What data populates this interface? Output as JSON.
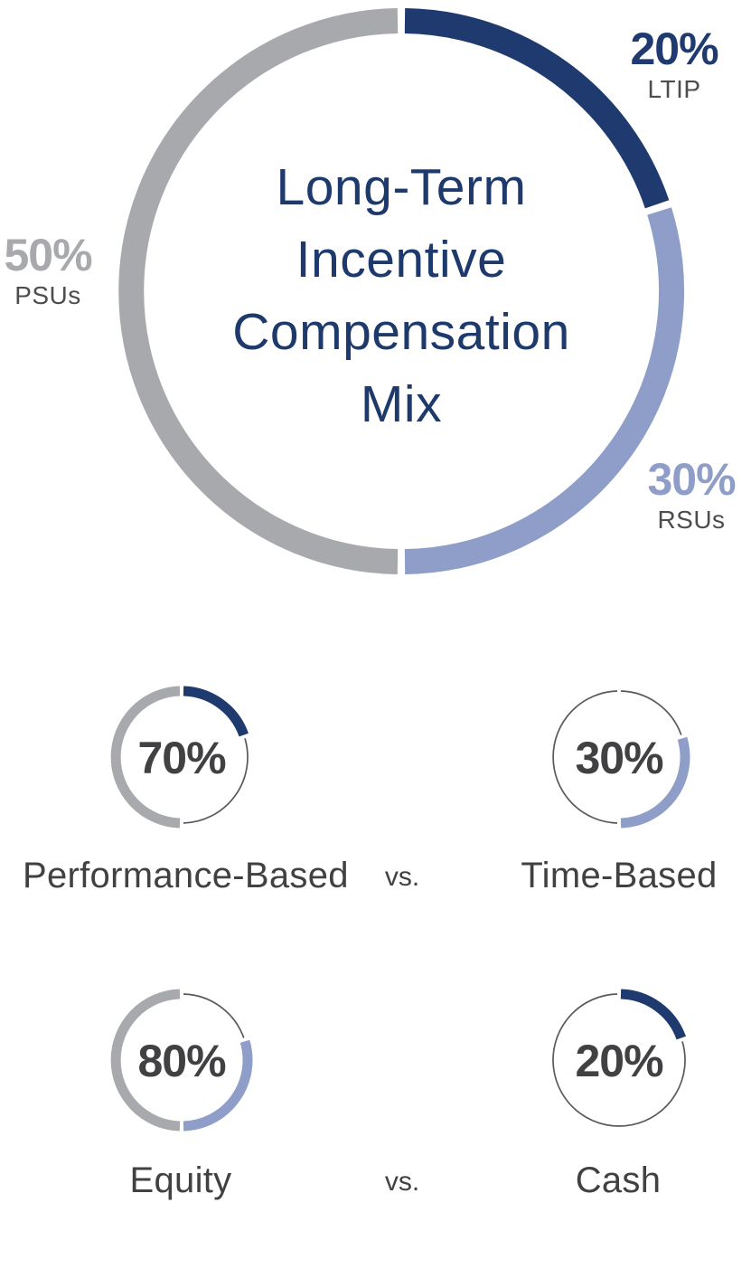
{
  "colors": {
    "navy": "#1F3A6E",
    "periwinkle": "#8E9EC8",
    "gray": "#A7A9AC",
    "hairline": "#58595B",
    "charcoal": "#414042",
    "sublabel": "#4D4D4F",
    "title_navy": "#1E3A6D"
  },
  "vs_labels": [
    "vs.",
    "vs."
  ],
  "chart_data": [
    {
      "id": "lti-mix",
      "type": "pie",
      "variant": "donut",
      "title": "Long-Term Incentive Compensation Mix",
      "title_lines": [
        "Long-Term",
        "Incentive",
        "Compensation",
        "Mix"
      ],
      "start_angle_deg": 0,
      "direction": "clockwise",
      "slices": [
        {
          "label": "LTIP",
          "value": 20,
          "callout_value": "20%",
          "color": "#1F3A6E",
          "style": "thick"
        },
        {
          "label": "RSUs",
          "value": 30,
          "callout_value": "30%",
          "color": "#8E9EC8",
          "style": "thick"
        },
        {
          "label": "PSUs",
          "value": 50,
          "callout_value": "50%",
          "color": "#A7A9AC",
          "style": "thick"
        }
      ]
    },
    {
      "id": "performance-based",
      "type": "pie",
      "variant": "ring",
      "center_label": "70%",
      "caption": "Performance-Based",
      "start_angle_deg": 0,
      "direction": "clockwise",
      "slices": [
        {
          "label": "LTIP",
          "value": 20,
          "color": "#1F3A6E",
          "style": "thick"
        },
        {
          "label": "remainder",
          "value": 30,
          "style": "thin"
        },
        {
          "label": "PSUs",
          "value": 50,
          "color": "#A7A9AC",
          "style": "thick"
        }
      ]
    },
    {
      "id": "time-based",
      "type": "pie",
      "variant": "ring",
      "center_label": "30%",
      "caption": "Time-Based",
      "start_angle_deg": 0,
      "direction": "clockwise",
      "slices": [
        {
          "label": "remainder",
          "value": 20,
          "style": "thin"
        },
        {
          "label": "RSUs",
          "value": 30,
          "color": "#8E9EC8",
          "style": "thick"
        },
        {
          "label": "remainder",
          "value": 50,
          "style": "thin"
        }
      ]
    },
    {
      "id": "equity",
      "type": "pie",
      "variant": "ring",
      "center_label": "80%",
      "caption": "Equity",
      "start_angle_deg": 0,
      "direction": "clockwise",
      "slices": [
        {
          "label": "remainder",
          "value": 20,
          "style": "thin"
        },
        {
          "label": "RSUs",
          "value": 30,
          "color": "#8E9EC8",
          "style": "thick"
        },
        {
          "label": "PSUs",
          "value": 50,
          "color": "#A7A9AC",
          "style": "thick"
        }
      ]
    },
    {
      "id": "cash",
      "type": "pie",
      "variant": "ring",
      "center_label": "20%",
      "caption": "Cash",
      "start_angle_deg": 0,
      "direction": "clockwise",
      "slices": [
        {
          "label": "LTIP",
          "value": 20,
          "color": "#1F3A6E",
          "style": "thick"
        },
        {
          "label": "remainder",
          "value": 80,
          "style": "thin"
        }
      ]
    }
  ]
}
